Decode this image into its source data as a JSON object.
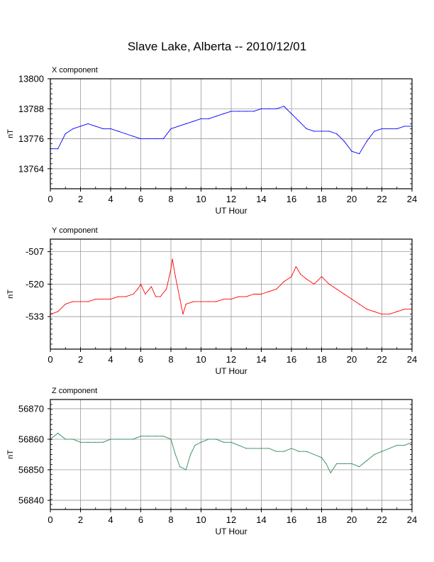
{
  "title": "Slave Lake, Alberta -- 2010/12/01",
  "chart_data": [
    {
      "type": "line",
      "panel_title": "X component",
      "xlabel": "UT Hour",
      "ylabel": "nT",
      "xlim": [
        0,
        24
      ],
      "ylim": [
        13756,
        13800
      ],
      "x_ticks": [
        0,
        2,
        4,
        6,
        8,
        10,
        12,
        14,
        16,
        18,
        20,
        22,
        24
      ],
      "y_ticks": [
        13764,
        13776,
        13788,
        13800
      ],
      "grid": true,
      "color": "#0000ff",
      "series": [
        {
          "x": [
            0,
            0.5,
            1,
            1.5,
            2,
            2.5,
            3,
            3.5,
            4,
            4.5,
            5,
            5.5,
            6,
            6.5,
            7,
            7.5,
            8,
            8.5,
            9,
            9.5,
            10,
            10.5,
            11,
            11.5,
            12,
            12.5,
            13,
            13.5,
            14,
            14.5,
            15,
            15.5,
            16,
            16.5,
            17,
            17.5,
            18,
            18.5,
            19,
            19.5,
            20,
            20.5,
            21,
            21.5,
            22,
            22.5,
            23,
            23.5,
            24
          ],
          "y": [
            13772,
            13772,
            13778,
            13780,
            13781,
            13782,
            13781,
            13780,
            13780,
            13779,
            13778,
            13777,
            13776,
            13776,
            13776,
            13776,
            13780,
            13781,
            13782,
            13783,
            13784,
            13784,
            13785,
            13786,
            13787,
            13787,
            13787,
            13787,
            13788,
            13788,
            13788,
            13789,
            13786,
            13783,
            13780,
            13779,
            13779,
            13779,
            13778,
            13775,
            13771,
            13770,
            13775,
            13779,
            13780,
            13780,
            13780,
            13781,
            13781
          ]
        }
      ]
    },
    {
      "type": "line",
      "panel_title": "Y component",
      "xlabel": "UT Hour",
      "ylabel": "nT",
      "xlim": [
        0,
        24
      ],
      "ylim": [
        -546,
        -502
      ],
      "x_ticks": [
        0,
        2,
        4,
        6,
        8,
        10,
        12,
        14,
        16,
        18,
        20,
        22,
        24
      ],
      "y_ticks": [
        -533,
        -520,
        -507
      ],
      "grid": true,
      "color": "#ff0000",
      "series": [
        {
          "x": [
            0,
            0.5,
            1,
            1.5,
            2,
            2.5,
            3,
            3.5,
            4,
            4.5,
            5,
            5.5,
            5.8,
            6,
            6.3,
            6.7,
            7,
            7.3,
            7.7,
            8,
            8.1,
            8.3,
            8.6,
            8.8,
            9,
            9.5,
            10,
            10.5,
            11,
            11.5,
            12,
            12.5,
            13,
            13.5,
            14,
            14.5,
            15,
            15.5,
            16,
            16.3,
            16.6,
            17,
            17.5,
            18,
            18.5,
            19,
            19.5,
            20,
            20.5,
            21,
            21.5,
            22,
            22.5,
            23,
            23.5,
            24
          ],
          "y": [
            -532,
            -531,
            -528,
            -527,
            -527,
            -527,
            -526,
            -526,
            -526,
            -525,
            -525,
            -524,
            -522,
            -520,
            -524,
            -521,
            -525,
            -525,
            -522,
            -514,
            -510,
            -517,
            -526,
            -532,
            -528,
            -527,
            -527,
            -527,
            -527,
            -526,
            -526,
            -525,
            -525,
            -524,
            -524,
            -523,
            -522,
            -519,
            -517,
            -513,
            -516,
            -518,
            -520,
            -517,
            -520,
            -522,
            -524,
            -526,
            -528,
            -530,
            -531,
            -532,
            -532,
            -531,
            -530,
            -530
          ]
        }
      ]
    },
    {
      "type": "line",
      "panel_title": "Z component",
      "xlabel": "UT Hour",
      "ylabel": "nT",
      "xlim": [
        0,
        24
      ],
      "ylim": [
        56837,
        56873
      ],
      "x_ticks": [
        0,
        2,
        4,
        6,
        8,
        10,
        12,
        14,
        16,
        18,
        20,
        22,
        24
      ],
      "y_ticks": [
        56840,
        56850,
        56860,
        56870
      ],
      "grid": true,
      "color": "#2e8b57",
      "series": [
        {
          "x": [
            0,
            0.5,
            1,
            1.5,
            2,
            2.5,
            3,
            3.5,
            4,
            4.5,
            5,
            5.5,
            6,
            6.5,
            7,
            7.5,
            8,
            8.3,
            8.6,
            9,
            9.3,
            9.6,
            10,
            10.5,
            11,
            11.5,
            12,
            12.5,
            13,
            13.5,
            14,
            14.5,
            15,
            15.5,
            16,
            16.5,
            17,
            17.5,
            18,
            18.3,
            18.6,
            19,
            19.5,
            20,
            20.5,
            21,
            21.5,
            22,
            22.5,
            23,
            23.5,
            24
          ],
          "y": [
            56860,
            56862,
            56860,
            56860,
            56859,
            56859,
            56859,
            56859,
            56860,
            56860,
            56860,
            56860,
            56861,
            56861,
            56861,
            56861,
            56860,
            56855,
            56851,
            56850,
            56855,
            56858,
            56859,
            56860,
            56860,
            56859,
            56859,
            56858,
            56857,
            56857,
            56857,
            56857,
            56856,
            56856,
            56857,
            56856,
            56856,
            56855,
            56854,
            56852,
            56849,
            56852,
            56852,
            56852,
            56851,
            56853,
            56855,
            56856,
            56857,
            56858,
            56858,
            56859
          ]
        }
      ]
    }
  ]
}
